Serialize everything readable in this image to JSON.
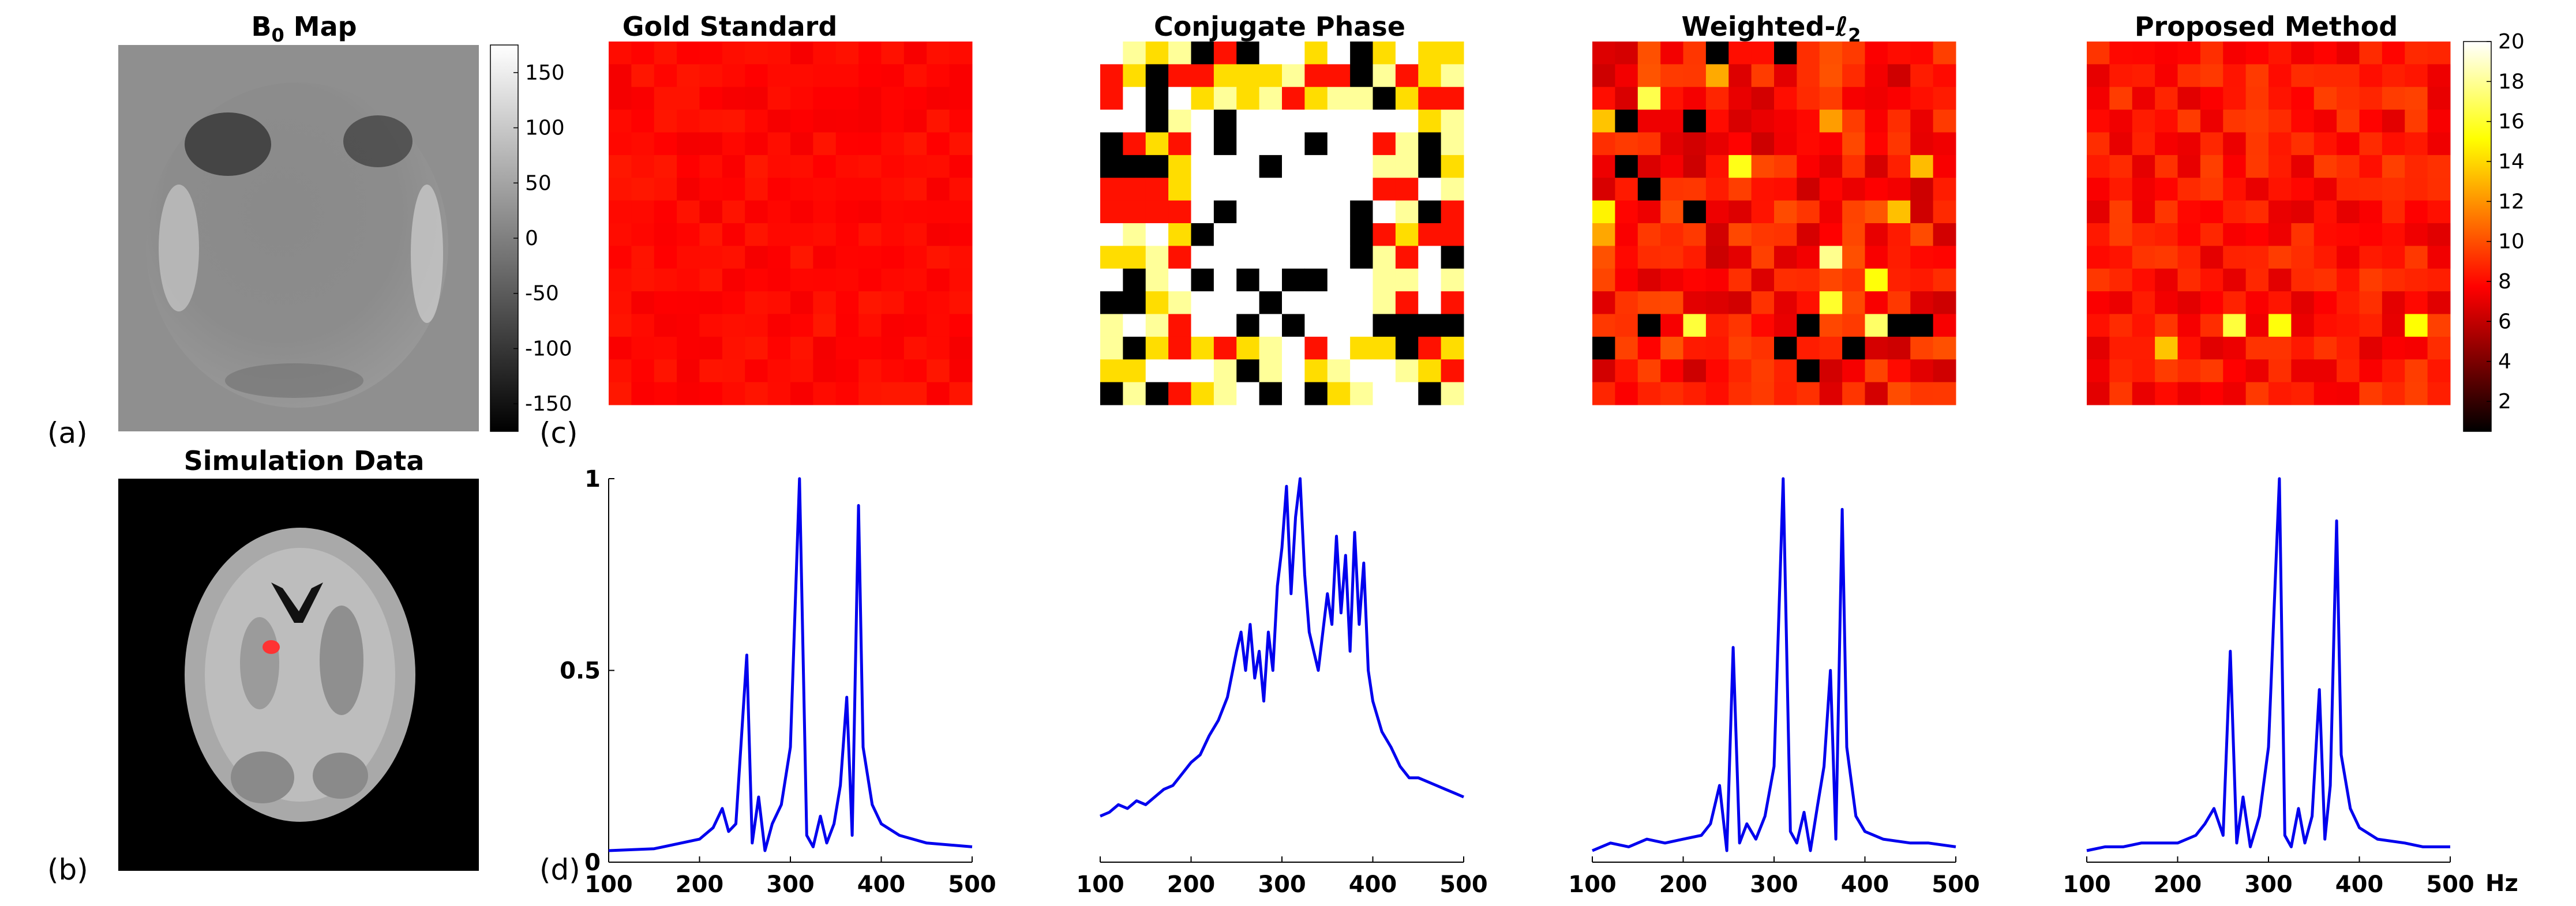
{
  "panel_labels": [
    "(a)",
    "(b)",
    "(c)",
    "(d)"
  ],
  "b0_map": {
    "title_main": "B",
    "title_sub": "0",
    "title_rest": " Map",
    "colorbar_ticks": [
      "150",
      "100",
      "50",
      "0",
      "-50",
      "-100",
      "-150"
    ],
    "colorbar_values": [
      150,
      100,
      50,
      0,
      -50,
      -100,
      -150
    ],
    "colorbar_range": [
      -175,
      175
    ]
  },
  "simulation": {
    "title": "Simulation Data",
    "marker_color": "#ff3333"
  },
  "heatmaps": {
    "colormap": "hot",
    "colorbar_ticks": [
      "20",
      "18",
      "16",
      "14",
      "12",
      "10",
      "8",
      "6",
      "4",
      "2"
    ],
    "colorbar_values": [
      20,
      18,
      16,
      14,
      12,
      10,
      8,
      6,
      4,
      2
    ],
    "colorbar_range": [
      0.5,
      20
    ],
    "panels": [
      {
        "title": "Gold Standard",
        "mode": "gold"
      },
      {
        "title": "Conjugate Phase",
        "mode": "cp"
      },
      {
        "title_prefix": "Weighted-",
        "title_ell": "ℓ",
        "title_sub": "2",
        "mode": "wl2"
      },
      {
        "title": "Proposed Method",
        "mode": "prop"
      }
    ]
  },
  "spectra": {
    "x_tick_labels": [
      "100",
      "200",
      "300",
      "400",
      "500"
    ],
    "y_tick_labels": [
      "1",
      "0.5",
      "0"
    ],
    "x_unit": "Hz",
    "line_color": "#0000ee"
  },
  "chart_data": {
    "type": "line",
    "title": "",
    "xlabel": "Hz",
    "ylabel": "",
    "xlim": [
      100,
      500
    ],
    "ylim": [
      0,
      1
    ],
    "grid": false,
    "series": [
      {
        "x": [
          100,
          150,
          200,
          215,
          225,
          232,
          240,
          252,
          258,
          265,
          272,
          280,
          290,
          300,
          310,
          318,
          325,
          333,
          340,
          348,
          355,
          362,
          368,
          375,
          380,
          390,
          400,
          420,
          450,
          500
        ],
        "values": [
          0.03,
          0.035,
          0.06,
          0.09,
          0.14,
          0.08,
          0.1,
          0.54,
          0.05,
          0.17,
          0.03,
          0.1,
          0.15,
          0.3,
          1.0,
          0.07,
          0.04,
          0.12,
          0.05,
          0.1,
          0.2,
          0.43,
          0.07,
          0.93,
          0.3,
          0.15,
          0.1,
          0.07,
          0.05,
          0.04
        ]
      },
      {
        "x": [
          100,
          110,
          120,
          130,
          140,
          150,
          160,
          170,
          180,
          190,
          200,
          210,
          220,
          230,
          240,
          250,
          255,
          260,
          265,
          270,
          275,
          280,
          285,
          290,
          295,
          300,
          305,
          310,
          315,
          320,
          325,
          330,
          335,
          340,
          345,
          350,
          355,
          360,
          365,
          370,
          375,
          380,
          385,
          390,
          395,
          400,
          405,
          410,
          420,
          430,
          440,
          450,
          460,
          470,
          480,
          490,
          500
        ],
        "values": [
          0.12,
          0.13,
          0.15,
          0.14,
          0.16,
          0.15,
          0.17,
          0.19,
          0.2,
          0.23,
          0.26,
          0.28,
          0.33,
          0.37,
          0.43,
          0.55,
          0.6,
          0.5,
          0.62,
          0.48,
          0.55,
          0.42,
          0.6,
          0.5,
          0.72,
          0.82,
          0.98,
          0.7,
          0.9,
          1.0,
          0.75,
          0.6,
          0.55,
          0.5,
          0.6,
          0.7,
          0.62,
          0.85,
          0.65,
          0.8,
          0.55,
          0.86,
          0.62,
          0.78,
          0.5,
          0.42,
          0.38,
          0.34,
          0.3,
          0.25,
          0.22,
          0.22,
          0.21,
          0.2,
          0.19,
          0.18,
          0.17
        ]
      },
      {
        "x": [
          100,
          120,
          140,
          160,
          180,
          200,
          220,
          230,
          240,
          248,
          255,
          262,
          270,
          280,
          290,
          300,
          310,
          318,
          325,
          333,
          340,
          348,
          355,
          362,
          368,
          375,
          380,
          390,
          400,
          420,
          450,
          470,
          500
        ],
        "values": [
          0.03,
          0.05,
          0.04,
          0.06,
          0.05,
          0.06,
          0.07,
          0.1,
          0.2,
          0.03,
          0.56,
          0.05,
          0.1,
          0.06,
          0.12,
          0.25,
          1.0,
          0.08,
          0.05,
          0.13,
          0.03,
          0.15,
          0.25,
          0.5,
          0.06,
          0.92,
          0.3,
          0.12,
          0.08,
          0.06,
          0.05,
          0.05,
          0.04
        ]
      },
      {
        "x": [
          100,
          120,
          140,
          160,
          180,
          200,
          220,
          230,
          240,
          250,
          258,
          265,
          272,
          280,
          290,
          300,
          312,
          318,
          325,
          333,
          340,
          348,
          356,
          362,
          368,
          375,
          380,
          390,
          400,
          420,
          450,
          470,
          500
        ],
        "values": [
          0.03,
          0.04,
          0.04,
          0.05,
          0.05,
          0.05,
          0.07,
          0.1,
          0.14,
          0.07,
          0.55,
          0.05,
          0.17,
          0.04,
          0.12,
          0.3,
          1.0,
          0.07,
          0.04,
          0.14,
          0.05,
          0.12,
          0.45,
          0.06,
          0.2,
          0.89,
          0.28,
          0.14,
          0.09,
          0.06,
          0.05,
          0.04,
          0.04
        ]
      }
    ]
  }
}
